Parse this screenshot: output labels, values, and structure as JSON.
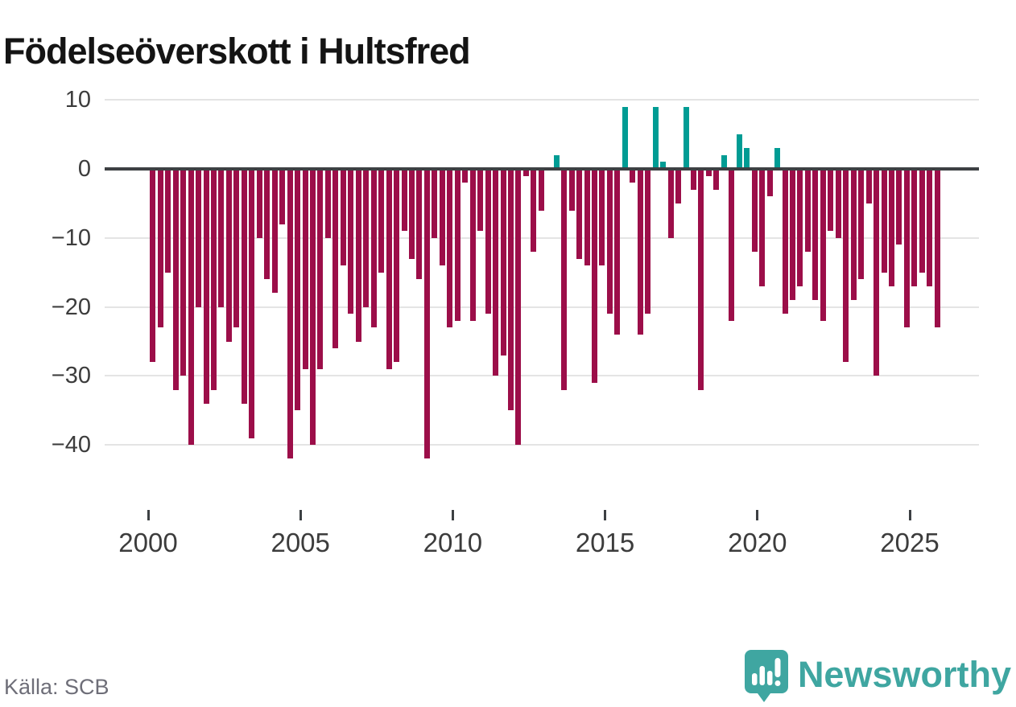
{
  "title": "Födelseöverskott i Hultsfred",
  "source": "Källa: SCB",
  "brand": {
    "name": "Newsworthy"
  },
  "colors": {
    "negative_bar": "#9c0e49",
    "positive_bar": "#009c94",
    "zero_axis": "#3d4043",
    "gridline": "#e4e4e4",
    "title_text": "#141414",
    "tick_text": "#3c3c3c",
    "source_text": "#6e6e78",
    "brand_teal": "#3fa6a1"
  },
  "chart_data": {
    "type": "bar",
    "title": "Födelseöverskott i Hultsfred",
    "x_unit": "quarter",
    "start": "2000Q1",
    "end": "2025Q4",
    "ylabel": "",
    "xlabel": "",
    "ylim": [
      -44,
      12
    ],
    "grid": true,
    "legend": "none",
    "y_ticks": [
      10,
      0,
      -10,
      -20,
      -30,
      -40
    ],
    "y_tick_labels": [
      "10",
      "0",
      "−10",
      "−20",
      "−30",
      "−40"
    ],
    "x_ticks": [
      {
        "year": 2000,
        "label": "2000"
      },
      {
        "year": 2005,
        "label": "2005"
      },
      {
        "year": 2010,
        "label": "2010"
      },
      {
        "year": 2015,
        "label": "2015"
      },
      {
        "year": 2020,
        "label": "2020"
      },
      {
        "year": 2025,
        "label": "2025"
      }
    ],
    "series_name": "Födelseöverskott per kvartal",
    "values_by_year": [
      {
        "year": 2000,
        "q": [
          -28,
          -23,
          -15,
          -32
        ]
      },
      {
        "year": 2001,
        "q": [
          -30,
          -40,
          -20,
          -34
        ]
      },
      {
        "year": 2002,
        "q": [
          -32,
          -20,
          -25,
          -23
        ]
      },
      {
        "year": 2003,
        "q": [
          -34,
          -39,
          -10,
          -16
        ]
      },
      {
        "year": 2004,
        "q": [
          -18,
          -8,
          -42,
          -35
        ]
      },
      {
        "year": 2005,
        "q": [
          -29,
          -40,
          -29,
          -10
        ]
      },
      {
        "year": 2006,
        "q": [
          -26,
          -14,
          -21,
          -25
        ]
      },
      {
        "year": 2007,
        "q": [
          -20,
          -23,
          -15,
          -29
        ]
      },
      {
        "year": 2008,
        "q": [
          -28,
          -9,
          -13,
          -16
        ]
      },
      {
        "year": 2009,
        "q": [
          -42,
          -10,
          -14,
          -23
        ]
      },
      {
        "year": 2010,
        "q": [
          -22,
          -2,
          -22,
          -9
        ]
      },
      {
        "year": 2011,
        "q": [
          -21,
          -30,
          -27,
          -35
        ]
      },
      {
        "year": 2012,
        "q": [
          -40,
          -1,
          -12,
          -6
        ]
      },
      {
        "year": 2013,
        "q": [
          0,
          2,
          -32,
          -6
        ]
      },
      {
        "year": 2014,
        "q": [
          -13,
          -14,
          -31,
          -14
        ]
      },
      {
        "year": 2015,
        "q": [
          -21,
          -24,
          9,
          -2
        ]
      },
      {
        "year": 2016,
        "q": [
          -24,
          -21,
          9,
          1
        ]
      },
      {
        "year": 2017,
        "q": [
          -10,
          -5,
          9,
          -3
        ]
      },
      {
        "year": 2018,
        "q": [
          -32,
          -1,
          -3,
          2
        ]
      },
      {
        "year": 2019,
        "q": [
          -22,
          5,
          3,
          -12
        ]
      },
      {
        "year": 2020,
        "q": [
          -17,
          -4,
          3,
          -21
        ]
      },
      {
        "year": 2021,
        "q": [
          -19,
          -17,
          -12,
          -19
        ]
      },
      {
        "year": 2022,
        "q": [
          -22,
          -9,
          -10,
          -28
        ]
      },
      {
        "year": 2023,
        "q": [
          -19,
          -16,
          -5,
          -30
        ]
      },
      {
        "year": 2024,
        "q": [
          -15,
          -17,
          -11,
          -23
        ]
      },
      {
        "year": 2025,
        "q": [
          -17,
          -15,
          -17,
          -23
        ]
      }
    ]
  }
}
